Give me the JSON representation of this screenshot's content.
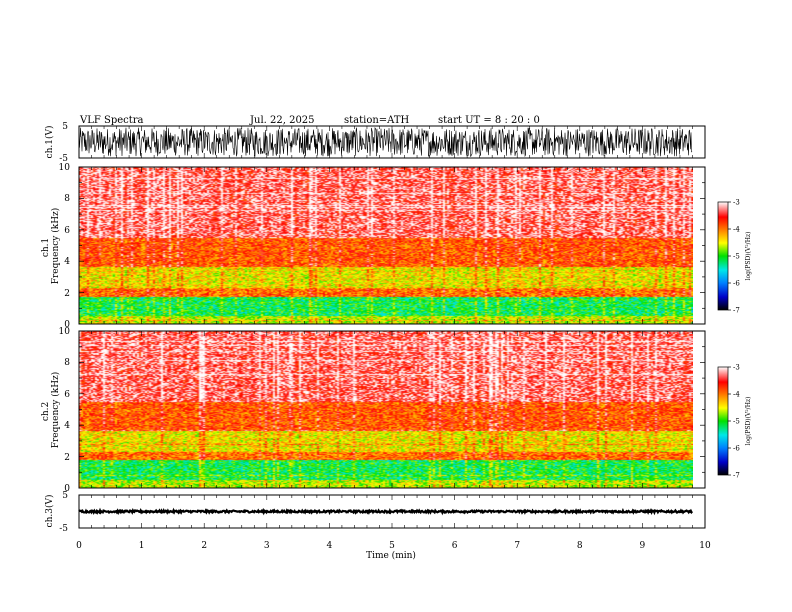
{
  "header": {
    "title": "VLF  Spectra",
    "date": "Jul.  22, 2025",
    "station": "station=ATH",
    "start": "start  UT  =   8 : 20 : 0"
  },
  "chart_data": [
    {
      "type": "line",
      "name": "ch1-waveform",
      "ylabel": "ch.1(V)",
      "ylim": [
        -5,
        5
      ],
      "yticks": [
        "5",
        "-5"
      ],
      "xlim": [
        0,
        10
      ],
      "data_end_min": 9.8,
      "amplitude_V": [
        -4.5,
        4.5
      ]
    },
    {
      "type": "heatmap",
      "name": "ch1-spectrogram",
      "ylabel": "ch.1\nFrequency (kHz)",
      "ylim": [
        0,
        10
      ],
      "yticks": [
        "0",
        "2",
        "4",
        "6",
        "8",
        "10"
      ],
      "xlim": [
        0,
        10
      ],
      "data_end_min": 9.8,
      "zlabel": "log(PSD)(V²/Hz)",
      "zlim": [
        -7,
        -3
      ],
      "zticks": [
        "-3",
        "-4",
        "-5",
        "-6",
        "-7"
      ],
      "bands_kHz": [
        {
          "from": 0,
          "to": 0.5,
          "level": -4.6
        },
        {
          "from": 0.5,
          "to": 1.7,
          "level": -5.1
        },
        {
          "from": 1.7,
          "to": 2.2,
          "level": -3.9
        },
        {
          "from": 2.2,
          "to": 3.6,
          "level": -4.4
        },
        {
          "from": 3.6,
          "to": 5.5,
          "level": -3.8
        },
        {
          "from": 5.5,
          "to": 10,
          "level": -3.3
        }
      ]
    },
    {
      "type": "heatmap",
      "name": "ch2-spectrogram",
      "ylabel": "ch.2\nFrequency (kHz)",
      "ylim": [
        0,
        10
      ],
      "yticks": [
        "0",
        "2",
        "4",
        "6",
        "8",
        "10"
      ],
      "xlim": [
        0,
        10
      ],
      "data_end_min": 9.8,
      "zlabel": "log(PSD)(V²/Hz)",
      "zlim": [
        -7,
        -3
      ],
      "zticks": [
        "-3",
        "-4",
        "-5",
        "-6",
        "-7"
      ],
      "bands_kHz": [
        {
          "from": 0,
          "to": 0.5,
          "level": -4.6
        },
        {
          "from": 0.5,
          "to": 1.8,
          "level": -5.1
        },
        {
          "from": 1.8,
          "to": 2.3,
          "level": -3.9
        },
        {
          "from": 2.3,
          "to": 3.6,
          "level": -4.4
        },
        {
          "from": 3.6,
          "to": 5.5,
          "level": -3.8
        },
        {
          "from": 5.5,
          "to": 10,
          "level": -3.3
        }
      ]
    },
    {
      "type": "line",
      "name": "ch3-waveform",
      "ylabel": "ch.3(V)",
      "xlabel": "Time  (min)",
      "ylim": [
        -5,
        5
      ],
      "yticks": [
        "5",
        "-5"
      ],
      "xlim": [
        0,
        10
      ],
      "xticks": [
        "0",
        "1",
        "2",
        "3",
        "4",
        "5",
        "6",
        "7",
        "8",
        "9",
        "10"
      ],
      "data_end_min": 9.8,
      "level_V": 0,
      "amplitude_V": [
        -0.3,
        0.3
      ]
    }
  ],
  "colorscale": [
    "#000000",
    "#0000c8",
    "#0080ff",
    "#00e8e8",
    "#00e000",
    "#ffff00",
    "#ff8000",
    "#ff0000",
    "#ffffff"
  ]
}
